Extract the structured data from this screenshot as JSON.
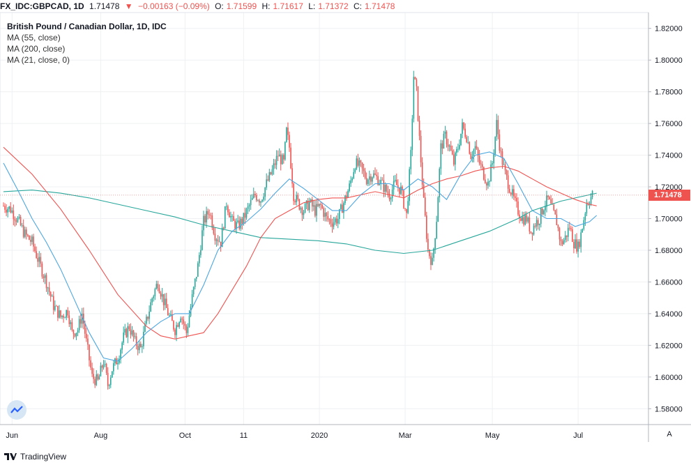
{
  "header": {
    "symbol": "FX_IDC:GBPCAD, 1D",
    "last": "1.71478",
    "arrow": "▼",
    "change": "−0.00163 (−0.09%)",
    "o_label": "O:",
    "o_value": "1.71599",
    "h_label": "H:",
    "h_value": "1.71617",
    "l_label": "L:",
    "l_value": "1.71372",
    "c_label": "C:",
    "c_value": "1.71478"
  },
  "legend": {
    "title": "British Pound / Canadian Dollar, 1D, IDC",
    "ma1": "MA (55, close)",
    "ma2": "MA (200, close)",
    "ma3": "MA (21, close, 0)"
  },
  "price_badge": "1.71478",
  "auto_label": "A",
  "footer": {
    "brand": "TradingView"
  },
  "colors": {
    "up": "#26a69a",
    "down": "#ef5350",
    "ma55": "#ef5350",
    "ma200": "#26a69a",
    "ma21": "#4ba6e0",
    "grid": "#eef0f3"
  },
  "chart_data": {
    "type": "candlestick",
    "symbol": "FX_IDC:GBPCAD",
    "ylim": [
      1.57,
      1.83
    ],
    "y_ticks": [
      "1.58000",
      "1.60000",
      "1.62000",
      "1.64000",
      "1.66000",
      "1.68000",
      "1.70000",
      "1.72000",
      "1.74000",
      "1.76000",
      "1.78000",
      "1.80000",
      "1.82000"
    ],
    "x_ticks": [
      "Jun",
      "Aug",
      "Oct",
      "11",
      "2020",
      "Mar",
      "May",
      "Jul"
    ],
    "close_path": [
      [
        0,
        1.708
      ],
      [
        5,
        1.706
      ],
      [
        10,
        1.699
      ],
      [
        15,
        1.69
      ],
      [
        20,
        1.685
      ],
      [
        25,
        1.672
      ],
      [
        30,
        1.66
      ],
      [
        35,
        1.645
      ],
      [
        40,
        1.638
      ],
      [
        45,
        1.642
      ],
      [
        48,
        1.628
      ],
      [
        52,
        1.63
      ],
      [
        55,
        1.64
      ],
      [
        58,
        1.622
      ],
      [
        62,
        1.6
      ],
      [
        66,
        1.597
      ],
      [
        70,
        1.61
      ],
      [
        73,
        1.595
      ],
      [
        76,
        1.605
      ],
      [
        80,
        1.612
      ],
      [
        84,
        1.625
      ],
      [
        88,
        1.632
      ],
      [
        92,
        1.622
      ],
      [
        96,
        1.618
      ],
      [
        100,
        1.635
      ],
      [
        104,
        1.65
      ],
      [
        108,
        1.66
      ],
      [
        112,
        1.648
      ],
      [
        116,
        1.638
      ],
      [
        120,
        1.63
      ],
      [
        124,
        1.64
      ],
      [
        128,
        1.628
      ],
      [
        132,
        1.65
      ],
      [
        136,
        1.67
      ],
      [
        140,
        1.698
      ],
      [
        144,
        1.705
      ],
      [
        148,
        1.69
      ],
      [
        152,
        1.685
      ],
      [
        156,
        1.71
      ],
      [
        160,
        1.698
      ],
      [
        164,
        1.695
      ],
      [
        168,
        1.7
      ],
      [
        172,
        1.708
      ],
      [
        176,
        1.715
      ],
      [
        180,
        1.712
      ],
      [
        184,
        1.722
      ],
      [
        188,
        1.73
      ],
      [
        192,
        1.74
      ],
      [
        196,
        1.735
      ],
      [
        198,
        1.755
      ],
      [
        200,
        1.745
      ],
      [
        203,
        1.715
      ],
      [
        206,
        1.71
      ],
      [
        210,
        1.705
      ],
      [
        214,
        1.71
      ],
      [
        218,
        1.705
      ],
      [
        222,
        1.708
      ],
      [
        226,
        1.7
      ],
      [
        230,
        1.698
      ],
      [
        234,
        1.7
      ],
      [
        238,
        1.71
      ],
      [
        242,
        1.72
      ],
      [
        246,
        1.735
      ],
      [
        250,
        1.732
      ],
      [
        254,
        1.725
      ],
      [
        258,
        1.728
      ],
      [
        262,
        1.725
      ],
      [
        266,
        1.72
      ],
      [
        270,
        1.715
      ],
      [
        274,
        1.722
      ],
      [
        278,
        1.718
      ],
      [
        282,
        1.702
      ],
      [
        285,
        1.74
      ],
      [
        287,
        1.79
      ],
      [
        289,
        1.78
      ],
      [
        291,
        1.75
      ],
      [
        294,
        1.71
      ],
      [
        297,
        1.68
      ],
      [
        300,
        1.672
      ],
      [
        303,
        1.7
      ],
      [
        306,
        1.745
      ],
      [
        309,
        1.752
      ],
      [
        312,
        1.745
      ],
      [
        315,
        1.735
      ],
      [
        318,
        1.745
      ],
      [
        321,
        1.758
      ],
      [
        324,
        1.752
      ],
      [
        327,
        1.74
      ],
      [
        330,
        1.745
      ],
      [
        333,
        1.735
      ],
      [
        336,
        1.728
      ],
      [
        339,
        1.722
      ],
      [
        342,
        1.735
      ],
      [
        345,
        1.76
      ],
      [
        348,
        1.74
      ],
      [
        351,
        1.728
      ],
      [
        354,
        1.72
      ],
      [
        357,
        1.712
      ],
      [
        360,
        1.705
      ],
      [
        363,
        1.7
      ],
      [
        366,
        1.7
      ],
      [
        369,
        1.692
      ],
      [
        372,
        1.697
      ],
      [
        375,
        1.7
      ],
      [
        378,
        1.708
      ],
      [
        381,
        1.712
      ],
      [
        384,
        1.705
      ],
      [
        387,
        1.698
      ],
      [
        390,
        1.684
      ],
      [
        393,
        1.688
      ],
      [
        396,
        1.695
      ],
      [
        399,
        1.685
      ],
      [
        402,
        1.682
      ],
      [
        404,
        1.69
      ],
      [
        406,
        1.7
      ],
      [
        408,
        1.71
      ],
      [
        410,
        1.712
      ],
      [
        412,
        1.715
      ]
    ],
    "ma21_path": [
      [
        0,
        1.735
      ],
      [
        10,
        1.718
      ],
      [
        20,
        1.7
      ],
      [
        30,
        1.685
      ],
      [
        40,
        1.668
      ],
      [
        50,
        1.648
      ],
      [
        60,
        1.628
      ],
      [
        70,
        1.612
      ],
      [
        80,
        1.61
      ],
      [
        90,
        1.618
      ],
      [
        100,
        1.628
      ],
      [
        110,
        1.635
      ],
      [
        120,
        1.64
      ],
      [
        130,
        1.64
      ],
      [
        140,
        1.658
      ],
      [
        150,
        1.68
      ],
      [
        160,
        1.692
      ],
      [
        170,
        1.698
      ],
      [
        180,
        1.706
      ],
      [
        190,
        1.716
      ],
      [
        200,
        1.725
      ],
      [
        210,
        1.719
      ],
      [
        220,
        1.712
      ],
      [
        230,
        1.705
      ],
      [
        240,
        1.705
      ],
      [
        250,
        1.715
      ],
      [
        260,
        1.722
      ],
      [
        270,
        1.722
      ],
      [
        280,
        1.718
      ],
      [
        290,
        1.725
      ],
      [
        300,
        1.72
      ],
      [
        310,
        1.712
      ],
      [
        320,
        1.728
      ],
      [
        330,
        1.74
      ],
      [
        340,
        1.742
      ],
      [
        350,
        1.738
      ],
      [
        360,
        1.722
      ],
      [
        370,
        1.705
      ],
      [
        380,
        1.7
      ],
      [
        390,
        1.7
      ],
      [
        400,
        1.695
      ],
      [
        410,
        1.698
      ],
      [
        415,
        1.702
      ]
    ],
    "ma55_path": [
      [
        0,
        1.745
      ],
      [
        20,
        1.728
      ],
      [
        40,
        1.706
      ],
      [
        60,
        1.68
      ],
      [
        80,
        1.652
      ],
      [
        100,
        1.632
      ],
      [
        110,
        1.626
      ],
      [
        120,
        1.624
      ],
      [
        130,
        1.626
      ],
      [
        140,
        1.628
      ],
      [
        150,
        1.64
      ],
      [
        160,
        1.655
      ],
      [
        170,
        1.67
      ],
      [
        180,
        1.688
      ],
      [
        190,
        1.7
      ],
      [
        200,
        1.705
      ],
      [
        210,
        1.71
      ],
      [
        220,
        1.712
      ],
      [
        230,
        1.713
      ],
      [
        240,
        1.713
      ],
      [
        250,
        1.715
      ],
      [
        260,
        1.717
      ],
      [
        270,
        1.715
      ],
      [
        280,
        1.713
      ],
      [
        290,
        1.718
      ],
      [
        300,
        1.722
      ],
      [
        310,
        1.725
      ],
      [
        320,
        1.727
      ],
      [
        330,
        1.73
      ],
      [
        340,
        1.732
      ],
      [
        350,
        1.733
      ],
      [
        360,
        1.73
      ],
      [
        370,
        1.725
      ],
      [
        380,
        1.72
      ],
      [
        390,
        1.716
      ],
      [
        400,
        1.712
      ],
      [
        410,
        1.709
      ],
      [
        415,
        1.708
      ]
    ],
    "ma200_path": [
      [
        0,
        1.717
      ],
      [
        20,
        1.718
      ],
      [
        40,
        1.716
      ],
      [
        60,
        1.713
      ],
      [
        80,
        1.709
      ],
      [
        100,
        1.705
      ],
      [
        120,
        1.701
      ],
      [
        140,
        1.696
      ],
      [
        160,
        1.692
      ],
      [
        180,
        1.688
      ],
      [
        200,
        1.687
      ],
      [
        220,
        1.686
      ],
      [
        240,
        1.684
      ],
      [
        260,
        1.68
      ],
      [
        280,
        1.678
      ],
      [
        300,
        1.68
      ],
      [
        320,
        1.686
      ],
      [
        340,
        1.692
      ],
      [
        360,
        1.7
      ],
      [
        370,
        1.705
      ],
      [
        380,
        1.708
      ],
      [
        390,
        1.711
      ],
      [
        400,
        1.713
      ],
      [
        410,
        1.715
      ],
      [
        415,
        1.716
      ]
    ]
  }
}
